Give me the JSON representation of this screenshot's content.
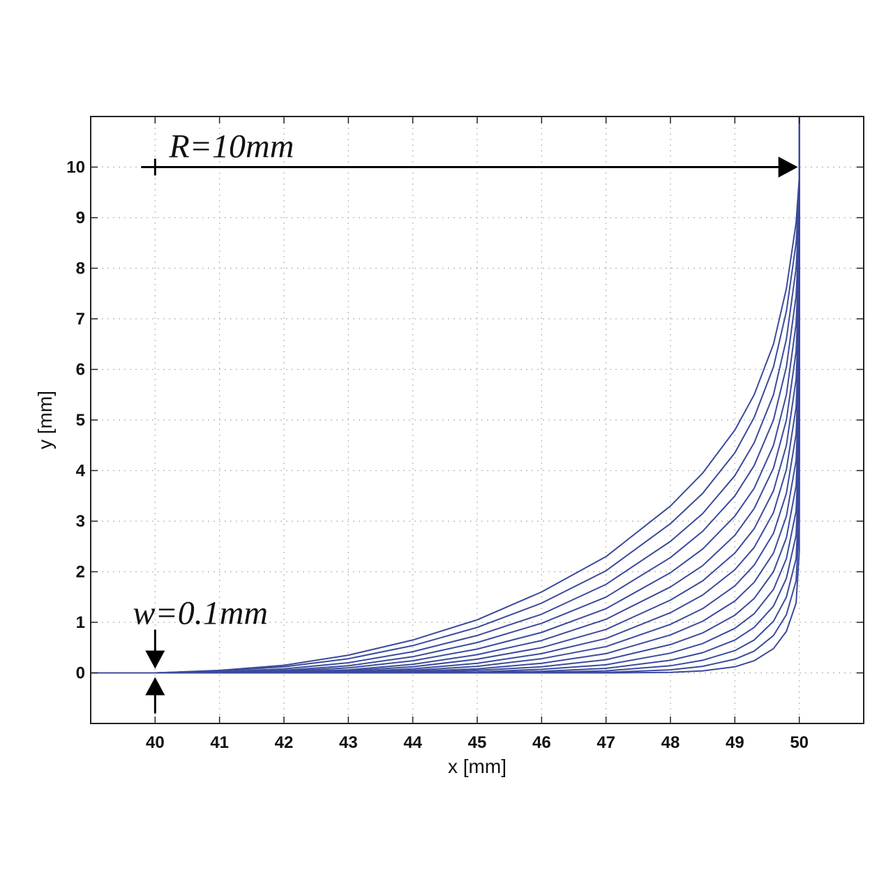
{
  "chart_data": {
    "type": "line",
    "title": "",
    "xlabel": "x [mm]",
    "ylabel": "y [mm]",
    "xlim": [
      39,
      51
    ],
    "ylim": [
      -1,
      11
    ],
    "xticks": [
      40,
      41,
      42,
      43,
      44,
      45,
      46,
      47,
      48,
      49,
      50
    ],
    "yticks": [
      0,
      1,
      2,
      3,
      4,
      5,
      6,
      7,
      8,
      9,
      10
    ],
    "grid": true,
    "legend": "none",
    "line_color": "#3a4a9c",
    "series": [
      {
        "x": [
          39,
          40,
          41,
          42,
          43,
          44,
          45,
          46,
          47,
          48,
          48.5,
          49,
          49.3,
          49.6,
          49.8,
          49.95,
          50,
          50,
          50
        ],
        "y": [
          0,
          0,
          0.05,
          0.15,
          0.35,
          0.65,
          1.05,
          1.6,
          2.3,
          3.3,
          3.95,
          4.8,
          5.5,
          6.5,
          7.6,
          8.9,
          9.8,
          10.5,
          11
        ]
      },
      {
        "x": [
          39,
          40,
          41,
          42,
          43,
          44,
          45,
          46,
          47,
          48,
          48.5,
          49,
          49.3,
          49.6,
          49.8,
          49.95,
          50,
          50,
          50
        ],
        "y": [
          0,
          0,
          0.04,
          0.12,
          0.28,
          0.54,
          0.9,
          1.38,
          2.02,
          2.95,
          3.55,
          4.35,
          5.05,
          6.05,
          7.15,
          8.5,
          9.55,
          10.4,
          11
        ]
      },
      {
        "x": [
          39,
          40,
          41,
          42,
          43,
          44,
          45,
          46,
          47,
          48,
          48.5,
          49,
          49.3,
          49.6,
          49.8,
          49.95,
          50,
          50,
          50
        ],
        "y": [
          0,
          0,
          0.02,
          0.08,
          0.2,
          0.42,
          0.74,
          1.16,
          1.75,
          2.6,
          3.15,
          3.9,
          4.55,
          5.5,
          6.6,
          8.0,
          9.2,
          10.3,
          11
        ]
      },
      {
        "x": [
          39,
          40,
          41,
          42,
          43,
          44,
          45,
          46,
          47,
          48,
          48.5,
          49,
          49.3,
          49.6,
          49.8,
          49.95,
          50,
          50,
          50
        ],
        "y": [
          0,
          0,
          0.01,
          0.05,
          0.14,
          0.32,
          0.6,
          0.98,
          1.5,
          2.28,
          2.8,
          3.5,
          4.1,
          5.0,
          6.05,
          7.45,
          8.8,
          10.2,
          11
        ]
      },
      {
        "x": [
          39,
          40,
          41,
          42,
          43,
          44,
          45,
          46,
          47,
          48,
          48.5,
          49,
          49.3,
          49.6,
          49.8,
          49.95,
          50,
          50,
          50
        ],
        "y": [
          0,
          0,
          0,
          0.03,
          0.1,
          0.24,
          0.47,
          0.8,
          1.27,
          1.98,
          2.45,
          3.1,
          3.65,
          4.5,
          5.5,
          6.9,
          8.35,
          10.0,
          11
        ]
      },
      {
        "x": [
          39,
          40,
          41,
          42,
          43,
          44,
          45,
          46,
          47,
          48,
          48.5,
          49,
          49.3,
          49.6,
          49.8,
          49.95,
          50,
          50,
          50
        ],
        "y": [
          0,
          0,
          0,
          0.02,
          0.06,
          0.17,
          0.36,
          0.64,
          1.06,
          1.7,
          2.12,
          2.72,
          3.25,
          4.05,
          5.0,
          6.35,
          7.9,
          9.8,
          11
        ]
      },
      {
        "x": [
          39,
          40,
          41,
          42,
          43,
          44,
          45,
          46,
          47,
          48,
          48.5,
          49,
          49.3,
          49.6,
          49.8,
          49.95,
          50,
          50,
          50
        ],
        "y": [
          0,
          0,
          0,
          0.01,
          0.04,
          0.12,
          0.27,
          0.5,
          0.86,
          1.44,
          1.82,
          2.37,
          2.85,
          3.6,
          4.5,
          5.8,
          7.4,
          9.6,
          11
        ]
      },
      {
        "x": [
          39,
          40,
          41,
          42,
          43,
          44,
          45,
          46,
          47,
          48,
          48.5,
          49,
          49.3,
          49.6,
          49.8,
          49.95,
          50,
          50,
          50
        ],
        "y": [
          0,
          0,
          0,
          0,
          0.02,
          0.08,
          0.19,
          0.38,
          0.68,
          1.19,
          1.54,
          2.04,
          2.48,
          3.17,
          4.02,
          5.25,
          6.9,
          9.4,
          11
        ]
      },
      {
        "x": [
          39,
          40,
          41,
          42,
          43,
          44,
          45,
          46,
          47,
          48,
          48.5,
          49,
          49.3,
          49.6,
          49.8,
          49.95,
          50,
          50,
          50
        ],
        "y": [
          0,
          0,
          0,
          0,
          0.01,
          0.05,
          0.13,
          0.28,
          0.52,
          0.96,
          1.27,
          1.72,
          2.13,
          2.76,
          3.55,
          4.72,
          6.4,
          9.1,
          11
        ]
      },
      {
        "x": [
          39,
          40,
          41,
          42,
          43,
          44,
          45,
          46,
          47,
          48,
          48.5,
          49,
          49.3,
          49.6,
          49.8,
          49.95,
          50,
          50,
          50
        ],
        "y": [
          0,
          0,
          0,
          0,
          0,
          0.03,
          0.08,
          0.19,
          0.38,
          0.75,
          1.02,
          1.42,
          1.79,
          2.37,
          3.1,
          4.2,
          5.85,
          8.8,
          11
        ]
      },
      {
        "x": [
          39,
          40,
          41,
          42,
          43,
          44,
          45,
          46,
          47,
          48,
          48.5,
          49,
          49.3,
          49.6,
          49.8,
          49.95,
          50,
          50,
          50
        ],
        "y": [
          0,
          0,
          0,
          0,
          0,
          0.01,
          0.05,
          0.12,
          0.26,
          0.56,
          0.79,
          1.14,
          1.47,
          2.0,
          2.67,
          3.7,
          5.3,
          8.4,
          11
        ]
      },
      {
        "x": [
          39,
          40,
          41,
          42,
          43,
          44,
          45,
          46,
          47,
          48,
          48.5,
          49,
          49.3,
          49.6,
          49.8,
          49.95,
          50,
          50,
          50
        ],
        "y": [
          0,
          0,
          0,
          0,
          0,
          0,
          0.02,
          0.07,
          0.16,
          0.39,
          0.58,
          0.88,
          1.17,
          1.65,
          2.26,
          3.2,
          4.75,
          8.0,
          11
        ]
      },
      {
        "x": [
          39,
          40,
          41,
          42,
          43,
          44,
          45,
          46,
          47,
          48,
          48.5,
          49,
          49.3,
          49.6,
          49.8,
          49.95,
          50,
          50,
          50
        ],
        "y": [
          0,
          0,
          0,
          0,
          0,
          0,
          0.01,
          0.03,
          0.09,
          0.25,
          0.4,
          0.65,
          0.9,
          1.32,
          1.87,
          2.72,
          4.2,
          7.5,
          11
        ]
      },
      {
        "x": [
          39,
          40,
          41,
          42,
          43,
          44,
          45,
          46,
          47,
          48,
          48.5,
          49,
          49.3,
          49.6,
          49.8,
          49.95,
          50,
          50,
          50
        ],
        "y": [
          0,
          0,
          0,
          0,
          0,
          0,
          0,
          0.01,
          0.04,
          0.14,
          0.25,
          0.44,
          0.65,
          1.02,
          1.5,
          2.26,
          3.6,
          7.0,
          11
        ]
      },
      {
        "x": [
          39,
          40,
          41,
          42,
          43,
          44,
          45,
          46,
          47,
          48,
          48.5,
          49,
          49.3,
          49.6,
          49.8,
          49.95,
          50,
          50,
          50
        ],
        "y": [
          0,
          0,
          0,
          0,
          0,
          0,
          0,
          0,
          0.01,
          0.06,
          0.13,
          0.27,
          0.43,
          0.74,
          1.15,
          1.82,
          3.0,
          6.4,
          11
        ]
      },
      {
        "x": [
          39,
          40,
          41,
          42,
          43,
          44,
          45,
          46,
          47,
          48,
          48.5,
          49,
          49.3,
          49.6,
          49.8,
          49.95,
          50,
          50,
          50
        ],
        "y": [
          0,
          0,
          0,
          0,
          0,
          0,
          0,
          0,
          0,
          0.01,
          0.04,
          0.12,
          0.24,
          0.48,
          0.82,
          1.38,
          2.4,
          5.6,
          11
        ]
      }
    ],
    "annotations": [
      {
        "text": "R=10mm",
        "arrow_from": [
          40,
          10
        ],
        "arrow_to": [
          50,
          10
        ]
      },
      {
        "text": "w=0.1mm",
        "arrow_at_x": 40,
        "arrow_gap": [
          -0.05,
          0.05
        ]
      }
    ]
  }
}
